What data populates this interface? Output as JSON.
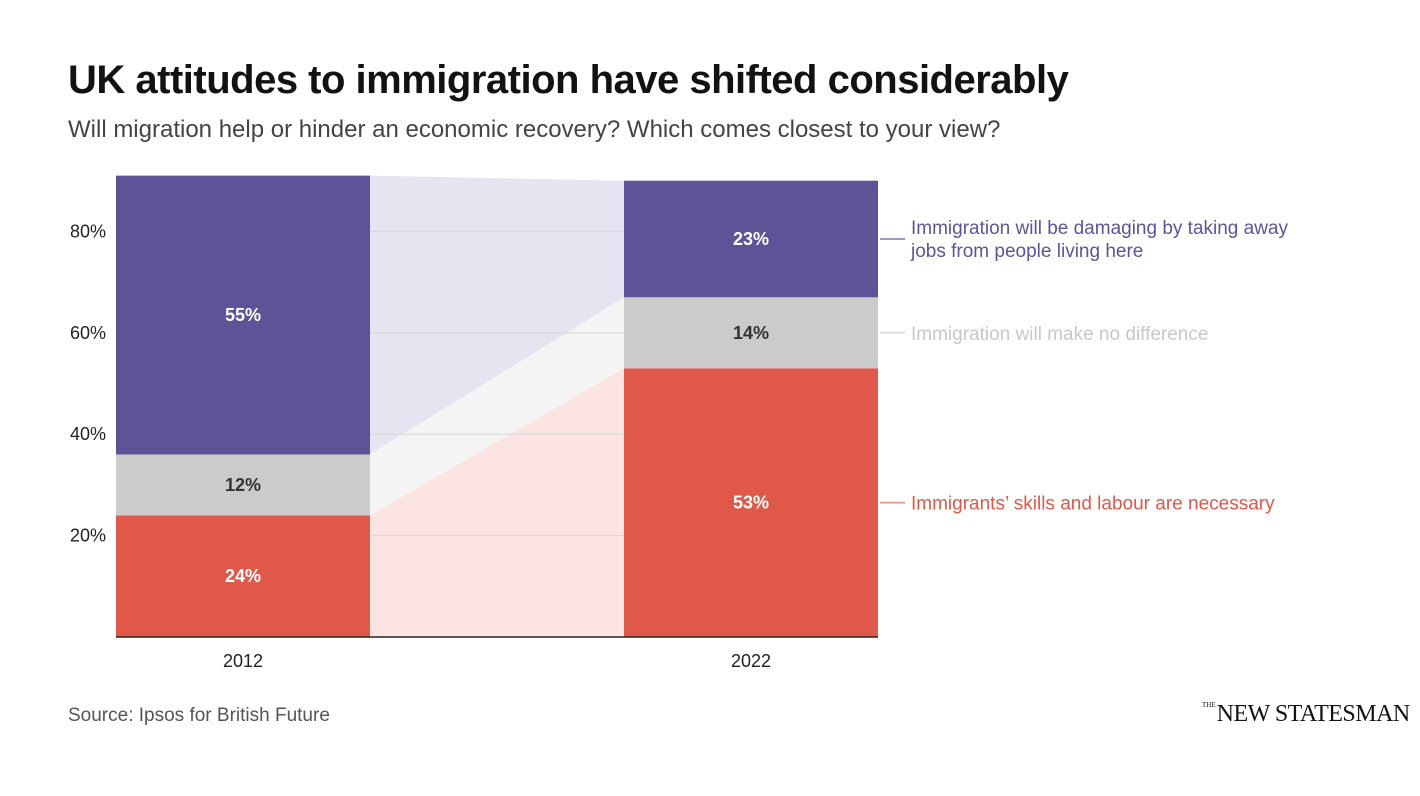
{
  "title": "UK attitudes to immigration have shifted considerably",
  "subtitle": "Will migration help or hinder an economic recovery? Which comes closest to your view?",
  "source": "Source: Ipsos for British Future",
  "logo": {
    "small": "THE",
    "main": "NEW STATESMAN"
  },
  "chart_data": {
    "type": "bar",
    "stacked": true,
    "title": "UK attitudes to immigration have shifted considerably",
    "subtitle": "Will migration help or hinder an economic recovery? Which comes closest to your view?",
    "categories": [
      "2012",
      "2022"
    ],
    "series": [
      {
        "name": "Immigrants’ skills and labour are necessary",
        "values": [
          24,
          53
        ],
        "labels": [
          "24%",
          "53%"
        ],
        "color": "#e0584a",
        "band_color": "#fbe4e1",
        "label_color": "#ffffff"
      },
      {
        "name": "Immigration will make no difference",
        "values": [
          12,
          14
        ],
        "labels": [
          "12%",
          "14%"
        ],
        "color": "#cbcbcb",
        "band_color": "#f4f4f4",
        "label_color": "#333333"
      },
      {
        "name": "Immigration will be damaging by taking away jobs from people living here",
        "legend_lines": [
          "Immigration will be damaging by taking away",
          "jobs from people living here"
        ],
        "values": [
          55,
          23
        ],
        "labels": [
          "55%",
          "23%"
        ],
        "color": "#5f5398",
        "band_color": "#e6e4f1",
        "label_color": "#ffffff"
      }
    ],
    "legend_colors": [
      "#e0584a",
      "#c8c8c8",
      "#5f5398"
    ],
    "yticks": [
      "20%",
      "40%",
      "60%",
      "80%"
    ],
    "ytick_values": [
      20,
      40,
      60,
      80
    ],
    "ylim": [
      0,
      100
    ],
    "grid": true,
    "legend": "right"
  }
}
